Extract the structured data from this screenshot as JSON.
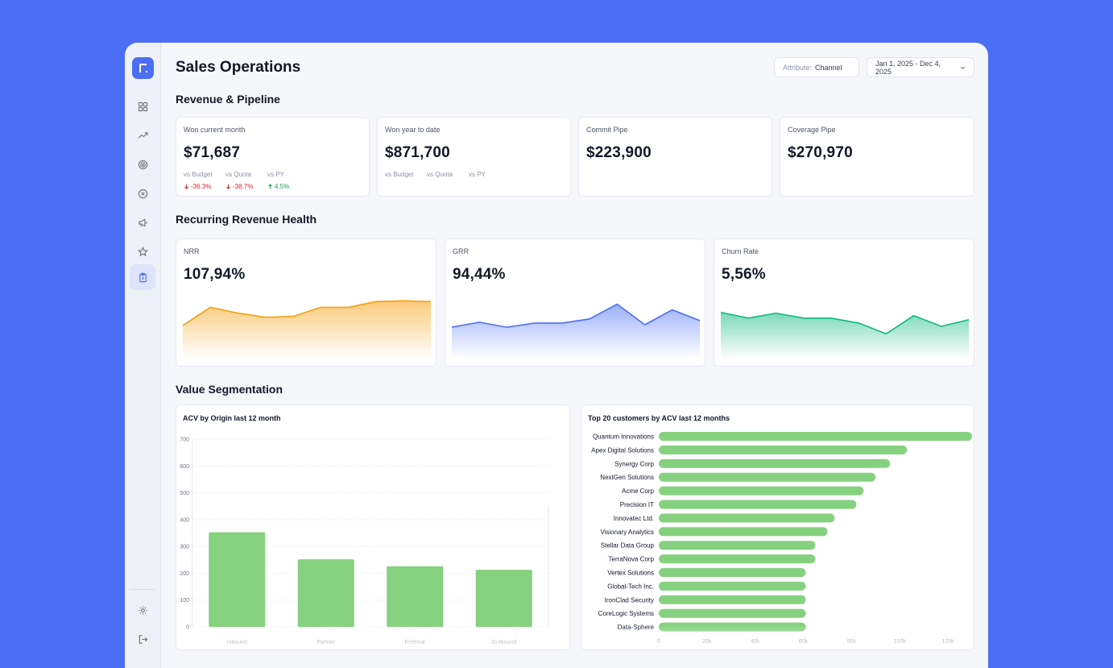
{
  "page": {
    "title": "Sales Operations"
  },
  "filters": {
    "attribute_label": "Attribute:",
    "attribute_value": "Channel",
    "date_range": "Jan 1, 2025 - Dec 4, 2025"
  },
  "sidebar": {
    "items": [
      {
        "name": "dashboard-icon"
      },
      {
        "name": "trend-icon"
      },
      {
        "name": "target-icon"
      },
      {
        "name": "close-circle-icon"
      },
      {
        "name": "megaphone-icon"
      },
      {
        "name": "star-icon"
      },
      {
        "name": "clipboard-icon",
        "active": true
      }
    ],
    "bottom": [
      {
        "name": "gear-icon"
      },
      {
        "name": "logout-icon"
      }
    ]
  },
  "sections": {
    "revenue": "Revenue & Pipeline",
    "recurring": "Recurring Revenue Health",
    "segmentation": "Value Segmentation"
  },
  "kpis": [
    {
      "label": "Won current month",
      "value": "$71,687",
      "comparisons": [
        {
          "label": "vs Budget",
          "value": "-36.3%",
          "trend": "down"
        },
        {
          "label": "vs Quota",
          "value": "-38.7%",
          "trend": "down"
        },
        {
          "label": "vs PY",
          "value": "4.5%",
          "trend": "up"
        }
      ]
    },
    {
      "label": "Won year to date",
      "value": "$871,700",
      "comparisons": [
        {
          "label": "vs Budget"
        },
        {
          "label": "vs Quota"
        },
        {
          "label": "vs PY"
        }
      ]
    },
    {
      "label": "Commit Pipe",
      "value": "$223,900",
      "comparisons": []
    },
    {
      "label": "Coverage Pipe",
      "value": "$270,970",
      "comparisons": []
    }
  ],
  "health": [
    {
      "label": "NRR",
      "value": "107,94%",
      "color": "#f59e0b",
      "spark": [
        40,
        62,
        55,
        50,
        51,
        62,
        62,
        69,
        70,
        69
      ]
    },
    {
      "label": "GRR",
      "value": "94,44%",
      "color": "#4b6ef5",
      "spark": [
        38,
        44,
        38,
        43,
        43,
        48,
        66,
        41,
        59,
        46
      ]
    },
    {
      "label": "Churn Rate",
      "value": "5,56%",
      "color": "#10b981",
      "spark": [
        56,
        49,
        55,
        49,
        49,
        43,
        30,
        52,
        39,
        47
      ]
    }
  ],
  "colors": {
    "accent": "#4b6ef5",
    "bar": "#86d17f"
  },
  "chart_data": [
    {
      "type": "bar",
      "title": "ACV by Origin last 12 month",
      "categories": [
        "Inbound",
        "Partner",
        "Referral",
        "Outbound"
      ],
      "values": [
        353,
        252,
        226,
        213
      ],
      "ylim": [
        0,
        700
      ],
      "yticks": [
        0,
        100,
        200,
        300,
        400,
        500,
        600,
        700
      ],
      "grid": true
    },
    {
      "type": "bar",
      "orientation": "horizontal",
      "title": "Top 20 customers by ACV last 12 months",
      "categories": [
        "Quantum Innovations",
        "Apex Digital Solutions",
        "Synergy Corp",
        "NextGen Solutions",
        "Acme Corp",
        "Precision IT",
        "Innovatec Ltd.",
        "Visionary Analytics",
        "Stellar Data Group",
        "TerraNova Corp",
        "Vertex Solutions",
        "Global-Tech Inc.",
        "IronClad Security",
        "CoreLogic Systems",
        "Data-Sphere"
      ],
      "values": [
        130000,
        103000,
        96000,
        90000,
        85000,
        82000,
        73000,
        70000,
        65000,
        65000,
        61000,
        61000,
        61000,
        61000,
        61000
      ],
      "xlim": [
        0,
        125000
      ],
      "xticks": [
        0,
        20000,
        40000,
        60000,
        80000,
        100000,
        120000
      ],
      "xtick_labels": [
        "0",
        "20k",
        "40k",
        "60k",
        "80k",
        "100k",
        "120k"
      ]
    }
  ]
}
